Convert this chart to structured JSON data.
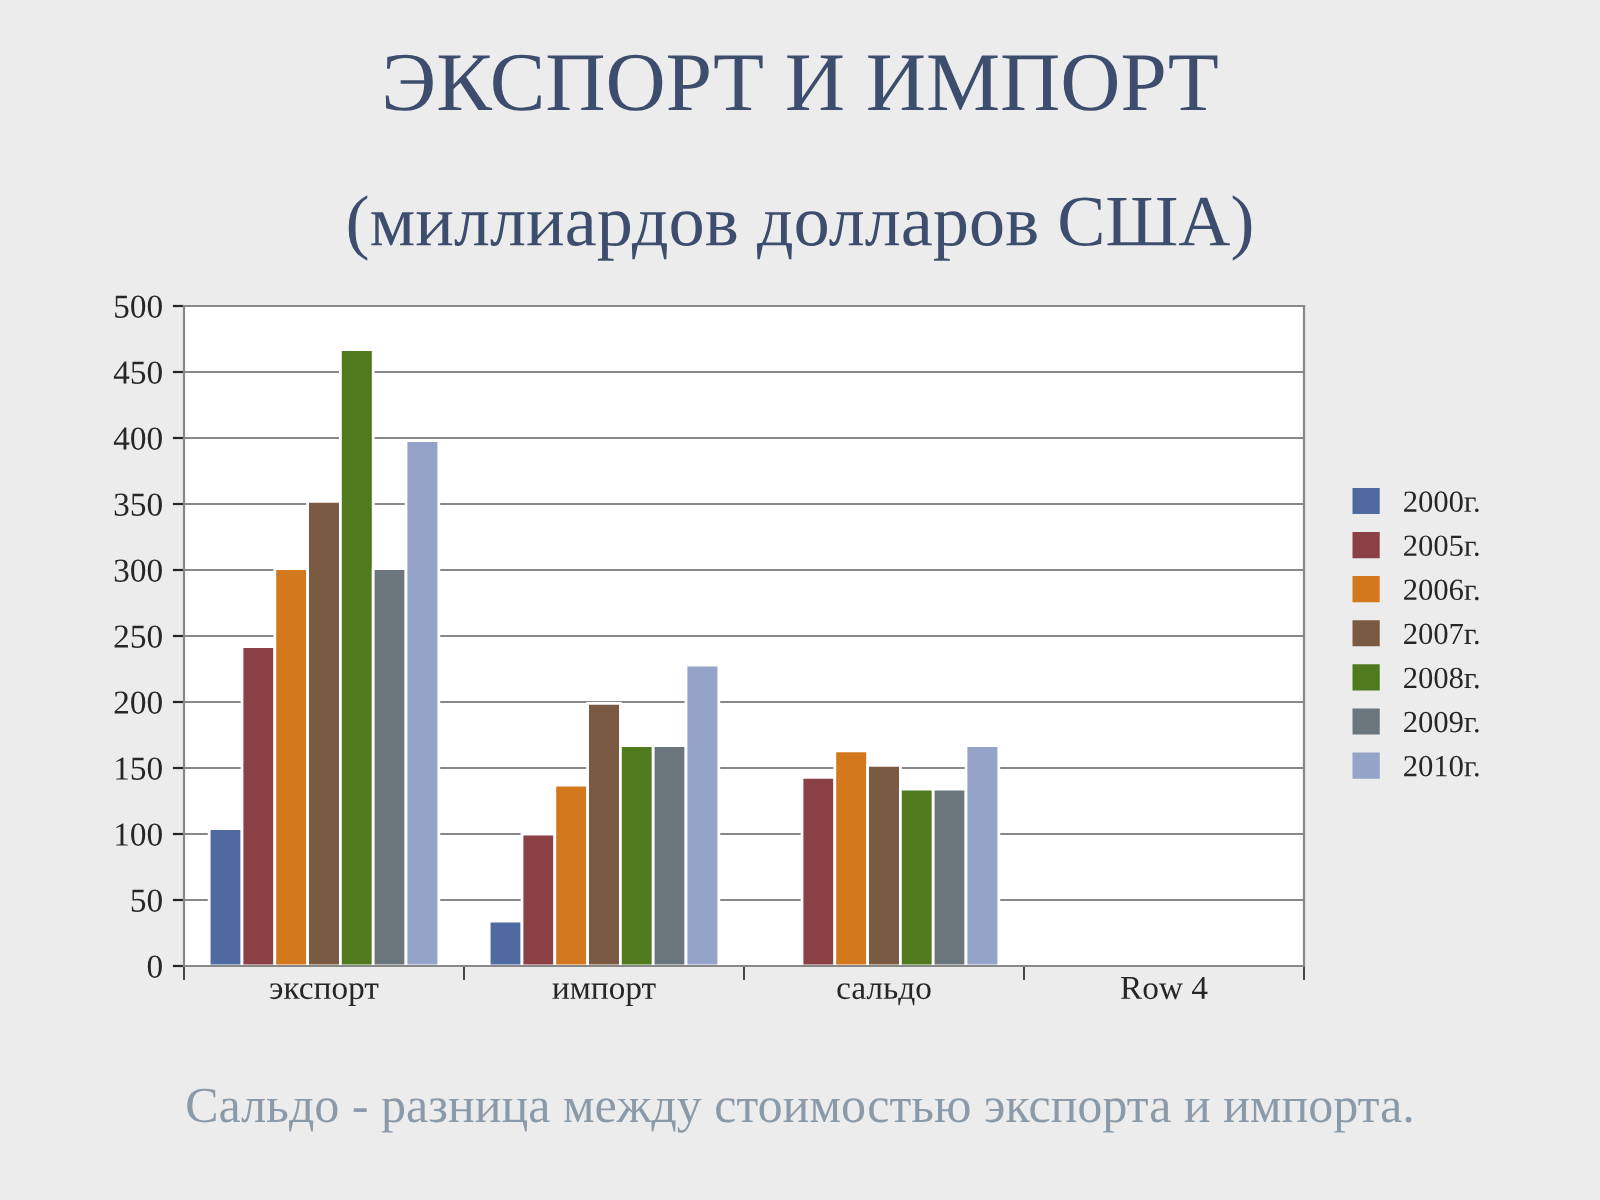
{
  "chart_data": {
    "type": "bar",
    "title": "ЭКСПОРТ И ИМПОРТ",
    "subtitle": "(миллиардов долларов США)",
    "categories": [
      "экспорт",
      "импорт",
      "сальдо",
      "Row 4"
    ],
    "series": [
      {
        "name": "2000г.",
        "color": "#4f6aa0",
        "values": [
          104,
          34,
          null,
          null
        ]
      },
      {
        "name": "2005г.",
        "color": "#8b4046",
        "values": [
          242,
          100,
          143,
          null
        ]
      },
      {
        "name": "2006г.",
        "color": "#d4781e",
        "values": [
          301,
          137,
          163,
          null
        ]
      },
      {
        "name": "2007г.",
        "color": "#7a5a42",
        "values": [
          352,
          199,
          152,
          null
        ]
      },
      {
        "name": "2008г.",
        "color": "#4f7a1e",
        "values": [
          467,
          167,
          134,
          null
        ]
      },
      {
        "name": "2009г.",
        "color": "#6b757c",
        "values": [
          301,
          167,
          134,
          null
        ]
      },
      {
        "name": "2010г.",
        "color": "#95a3c8",
        "values": [
          398,
          228,
          167,
          null
        ]
      }
    ],
    "ylim": [
      0,
      500
    ],
    "yticks": [
      0,
      50,
      100,
      150,
      200,
      250,
      300,
      350,
      400,
      450,
      500
    ],
    "grid": "y",
    "legend": "right",
    "annotations": [
      "Сальдо - разница между стоимостью экспорта и импорта."
    ]
  }
}
